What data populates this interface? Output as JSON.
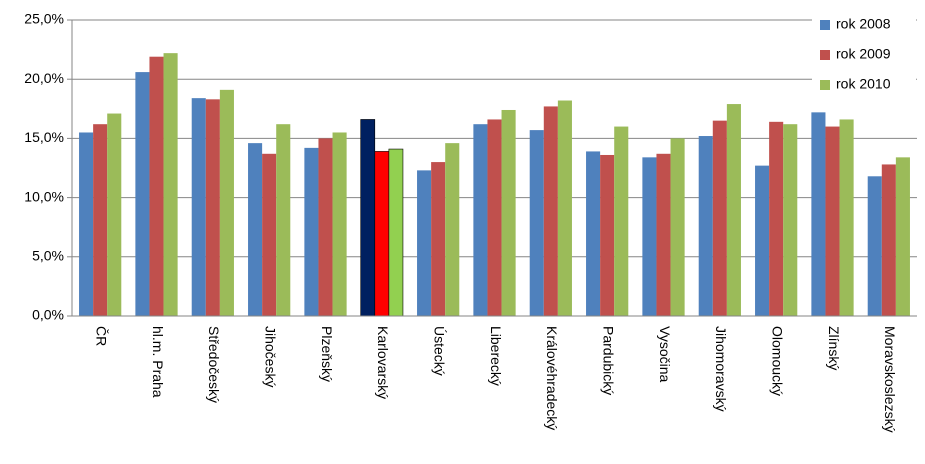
{
  "chart_data": {
    "type": "bar",
    "categories": [
      "ČR",
      "hl.m. Praha",
      "Středočeský",
      "Jihočeský",
      "Plzeňský",
      "Karlovarský",
      "Ústecký",
      "Liberecký",
      "Královéhradecký",
      "Pardubický",
      "Vysočina",
      "Jihomoravský",
      "Olomoucký",
      "Zlínský",
      "Moravskoslezský"
    ],
    "series": [
      {
        "name": "rok 2008",
        "color": "#4f81bd",
        "values": [
          15.5,
          20.6,
          18.4,
          14.6,
          14.2,
          16.6,
          12.3,
          16.2,
          15.7,
          13.9,
          13.4,
          15.2,
          12.7,
          17.2,
          11.8
        ]
      },
      {
        "name": "rok 2009",
        "color": "#c0504d",
        "values": [
          16.2,
          21.9,
          18.3,
          13.7,
          15.0,
          13.9,
          13.0,
          16.6,
          17.7,
          13.6,
          13.7,
          16.5,
          16.4,
          16.0,
          12.8
        ]
      },
      {
        "name": "rok 2010",
        "color": "#9bbb59",
        "values": [
          17.1,
          22.2,
          19.1,
          16.2,
          15.5,
          14.1,
          14.6,
          17.4,
          18.2,
          16.0,
          15.0,
          17.9,
          16.2,
          16.6,
          13.4
        ]
      }
    ],
    "highlight": {
      "index": 5,
      "colors": [
        "#002060",
        "#ff0000",
        "#92d050"
      ]
    },
    "ylim": [
      0,
      25
    ],
    "yticks": [
      {
        "value": 0,
        "label": "0,0%"
      },
      {
        "value": 5,
        "label": "5,0%"
      },
      {
        "value": 10,
        "label": "10,0%"
      },
      {
        "value": 15,
        "label": "15,0%"
      },
      {
        "value": 20,
        "label": "20,0%"
      },
      {
        "value": 25,
        "label": "25,0%"
      }
    ],
    "grid": true,
    "legend": "top-right"
  }
}
